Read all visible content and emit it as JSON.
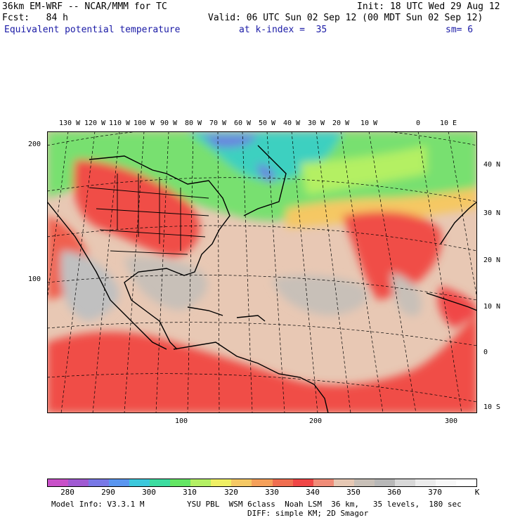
{
  "header": {
    "line1_left": "36km EM-WRF -- NCAR/MMM for TC",
    "line1_right": "Init: 18 UTC Wed 29 Aug 12",
    "line2_left": "Fcst:   84 h",
    "line2_right": "Valid: 06 UTC Sun 02 Sep 12 (00 MDT Sun 02 Sep 12)",
    "field": "Equivalent potential temperature",
    "level": "at k-index =  35",
    "smooth": "sm= 6"
  },
  "map": {
    "lon_labels": [
      "130 W",
      "120 W",
      "110 W",
      "100 W",
      "90 W",
      "80 W",
      "70 W",
      "60 W",
      "50 W",
      "40 W",
      "30 W",
      "20 W",
      "10 W",
      "0",
      "10 E"
    ],
    "lat_labels": [
      "40 N",
      "30 N",
      "20 N",
      "10 N",
      "0",
      "10 S"
    ],
    "grid_y_labels": [
      "200",
      "100"
    ],
    "grid_x_labels": [
      "100",
      "200",
      "300"
    ],
    "colors": {
      "land_outline": "#000000",
      "grid": "#000000"
    }
  },
  "colorbar": {
    "colors": [
      "#c850c8",
      "#a05ad2",
      "#7878e6",
      "#5a96f0",
      "#3cc8dc",
      "#3cdca0",
      "#64e664",
      "#b4f064",
      "#f0f064",
      "#f5c864",
      "#f5a05a",
      "#f06e50",
      "#f04646",
      "#f08c78",
      "#e6c8b4",
      "#c8c0b8",
      "#b8b8b8",
      "#d8d8d8",
      "#ececec",
      "#f8f8f8",
      "#ffffff"
    ],
    "tick_labels": [
      "280",
      "290",
      "300",
      "310",
      "320",
      "330",
      "340",
      "350",
      "360",
      "370",
      "K"
    ]
  },
  "footer": {
    "line1_left": "Model Info: V3.3.1 M",
    "line1_right": "YSU PBL  WSM 6class  Noah LSM  36 km,   35 levels,  180 sec",
    "line2_right": "DIFF: simple KM; 2D Smagor"
  }
}
